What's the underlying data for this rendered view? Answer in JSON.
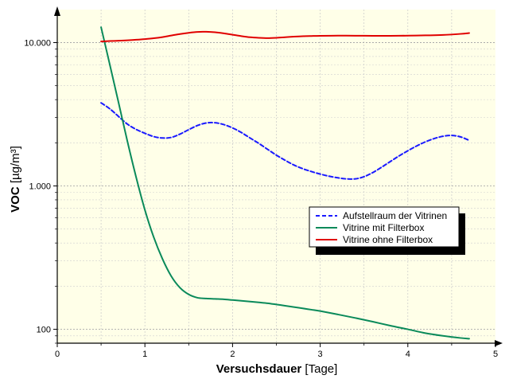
{
  "chart_data": {
    "type": "line",
    "title": "",
    "xlabel_bold": "Versuchsdauer",
    "xlabel_unit": " [Tage]",
    "ylabel_bold": "VOC",
    "ylabel_unit": " [µg/m³]",
    "xlim": [
      0,
      5
    ],
    "ylim": [
      80,
      17000
    ],
    "yscale": "log",
    "x_ticks": [
      0,
      1,
      2,
      3,
      4,
      5
    ],
    "x_tick_labels": [
      "0",
      "1",
      "2",
      "3",
      "4",
      "5"
    ],
    "y_ticks": [
      100,
      1000,
      10000
    ],
    "y_tick_labels": [
      "100",
      "1.000",
      "10.000"
    ],
    "grid": true,
    "background": "#ffffe8",
    "legend_position": "right",
    "series": [
      {
        "name": "Aufstellraum der Vitrinen",
        "color": "#1a1aff",
        "style": "dashed",
        "x": [
          0.5,
          0.6,
          0.7,
          0.8,
          0.9,
          1.0,
          1.1,
          1.2,
          1.3,
          1.4,
          1.5,
          1.6,
          1.7,
          1.8,
          1.9,
          2.0,
          2.1,
          2.2,
          2.3,
          2.4,
          2.5,
          2.6,
          2.7,
          2.8,
          2.9,
          3.0,
          3.1,
          3.2,
          3.3,
          3.4,
          3.5,
          3.6,
          3.7,
          3.8,
          3.9,
          4.0,
          4.1,
          4.2,
          4.3,
          4.4,
          4.5,
          4.6,
          4.7
        ],
        "values": [
          3800,
          3450,
          3050,
          2700,
          2480,
          2330,
          2210,
          2160,
          2180,
          2300,
          2470,
          2640,
          2750,
          2760,
          2680,
          2540,
          2360,
          2160,
          1980,
          1800,
          1640,
          1510,
          1400,
          1320,
          1260,
          1210,
          1170,
          1140,
          1120,
          1120,
          1160,
          1240,
          1350,
          1480,
          1620,
          1760,
          1900,
          2030,
          2140,
          2220,
          2250,
          2200,
          2080
        ]
      },
      {
        "name": "Vitrine mit Filterbox",
        "color": "#0a8a5a",
        "style": "solid",
        "x": [
          0.5,
          0.6,
          0.7,
          0.8,
          0.9,
          1.0,
          1.1,
          1.2,
          1.3,
          1.4,
          1.5,
          1.6,
          1.7,
          1.8,
          1.9,
          2.0,
          2.1,
          2.2,
          2.3,
          2.4,
          2.5,
          2.6,
          2.7,
          2.8,
          2.9,
          3.0,
          3.2,
          3.4,
          3.6,
          3.8,
          4.0,
          4.2,
          4.4,
          4.6,
          4.7
        ],
        "values": [
          12800,
          7000,
          3800,
          2050,
          1150,
          680,
          440,
          310,
          235,
          195,
          175,
          166,
          164,
          163,
          162,
          160,
          158,
          156,
          154,
          152,
          149,
          146,
          143,
          140,
          137,
          134,
          127,
          120,
          113,
          106,
          100,
          94,
          90,
          87,
          86
        ]
      },
      {
        "name": "Vitrine ohne Filterbox",
        "color": "#e00000",
        "style": "solid",
        "x": [
          0.5,
          0.6,
          0.7,
          0.8,
          0.9,
          1.0,
          1.1,
          1.2,
          1.3,
          1.4,
          1.5,
          1.6,
          1.7,
          1.8,
          1.9,
          2.0,
          2.1,
          2.2,
          2.3,
          2.4,
          2.5,
          2.6,
          2.7,
          2.8,
          2.9,
          3.0,
          3.2,
          3.4,
          3.6,
          3.8,
          4.0,
          4.2,
          4.4,
          4.6,
          4.7
        ],
        "values": [
          10200,
          10250,
          10300,
          10380,
          10470,
          10580,
          10720,
          10920,
          11200,
          11480,
          11700,
          11860,
          11900,
          11800,
          11600,
          11350,
          11100,
          10900,
          10800,
          10750,
          10800,
          10900,
          11000,
          11080,
          11120,
          11150,
          11180,
          11170,
          11150,
          11150,
          11180,
          11230,
          11300,
          11500,
          11650
        ]
      }
    ]
  }
}
